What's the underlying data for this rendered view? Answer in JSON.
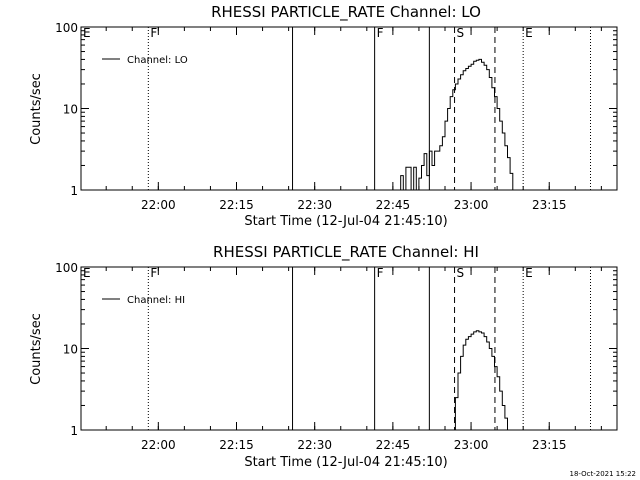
{
  "stamp": "18-Oct-2021 15:22",
  "chart_data": [
    {
      "type": "line",
      "title": "RHESSI PARTICLE_RATE Channel: LO",
      "xlabel": "Start Time (12-Jul-04 21:45:10)",
      "ylabel": "Counts/sec",
      "yscale": "log",
      "ylim": [
        1,
        100
      ],
      "xlim": [
        "21:45:10",
        "23:28:00"
      ],
      "xticks": [
        "22:00",
        "22:15",
        "22:30",
        "22:45",
        "23:00",
        "23:15"
      ],
      "yticks": [
        "1",
        "10",
        "100"
      ],
      "legend": "Channel: LO",
      "legend_position": "top-left",
      "series": [
        {
          "name": "Channel: LO",
          "x": [
            "22:46:00",
            "22:46:30",
            "22:47:00",
            "22:47:30",
            "22:48:00",
            "22:48:30",
            "22:49:00",
            "22:49:30",
            "22:50:00",
            "22:50:30",
            "22:51:00",
            "22:51:30",
            "22:52:00",
            "22:52:30",
            "22:53:00",
            "22:53:30",
            "22:54:00",
            "22:54:30",
            "22:55:00",
            "22:55:30",
            "22:56:00",
            "22:56:30",
            "22:57:00",
            "22:57:30",
            "22:58:00",
            "22:58:30",
            "22:59:00",
            "22:59:30",
            "23:00:00",
            "23:00:30",
            "23:01:00",
            "23:01:30",
            "23:02:00",
            "23:02:30",
            "23:03:00",
            "23:03:30",
            "23:04:00",
            "23:04:30",
            "23:05:00",
            "23:05:30",
            "23:06:00",
            "23:06:30",
            "23:07:00",
            "23:07:30",
            "23:08:00"
          ],
          "values": [
            1,
            1.5,
            1,
            1.9,
            1.9,
            1,
            1.9,
            1,
            1.4,
            2,
            2.8,
            1.5,
            3,
            2,
            3,
            3,
            3.5,
            4.5,
            7,
            10,
            14,
            17,
            20,
            23,
            26,
            29,
            31,
            33,
            35,
            38,
            39,
            40,
            37,
            34,
            30,
            24,
            18,
            14,
            10,
            7,
            5,
            3.5,
            2.5,
            1.6,
            1
          ]
        }
      ],
      "flags": [
        {
          "label": "E",
          "time": "21:45:10",
          "style": "dotted"
        },
        {
          "label": "F",
          "time": "21:58:05",
          "style": "dotted"
        },
        {
          "label": "",
          "time": "22:25:45",
          "style": "solid"
        },
        {
          "label": "F",
          "time": "22:41:30",
          "style": "solid"
        },
        {
          "label": "",
          "time": "22:52:00",
          "style": "solid"
        },
        {
          "label": "S",
          "time": "22:56:50",
          "style": "dashed"
        },
        {
          "label": "",
          "time": "23:04:35",
          "style": "dashed"
        },
        {
          "label": "E",
          "time": "23:10:00",
          "style": "dotted"
        },
        {
          "label": "",
          "time": "23:22:55",
          "style": "dotted"
        }
      ]
    },
    {
      "type": "line",
      "title": "RHESSI PARTICLE_RATE Channel: HI",
      "xlabel": "Start Time (12-Jul-04 21:45:10)",
      "ylabel": "Counts/sec",
      "yscale": "log",
      "ylim": [
        1,
        100
      ],
      "xlim": [
        "21:45:10",
        "23:28:00"
      ],
      "xticks": [
        "22:00",
        "22:15",
        "22:30",
        "22:45",
        "23:00",
        "23:15"
      ],
      "yticks": [
        "1",
        "10",
        "100"
      ],
      "legend": "Channel: HI",
      "legend_position": "top-left",
      "series": [
        {
          "name": "Channel: HI",
          "x": [
            "22:56:40",
            "22:57:00",
            "22:57:30",
            "22:58:00",
            "22:58:30",
            "22:59:00",
            "22:59:30",
            "23:00:00",
            "23:00:30",
            "23:01:00",
            "23:01:30",
            "23:02:00",
            "23:02:30",
            "23:03:00",
            "23:03:30",
            "23:04:00",
            "23:04:30",
            "23:05:00",
            "23:05:30",
            "23:06:00",
            "23:06:30",
            "23:07:00"
          ],
          "values": [
            1,
            2.5,
            5,
            8,
            11,
            13,
            14,
            15,
            16,
            16.5,
            16,
            15.5,
            14,
            12,
            10,
            8,
            6,
            4.5,
            3,
            2,
            1.4,
            1
          ]
        }
      ],
      "flags": [
        {
          "label": "E",
          "time": "21:45:10",
          "style": "dotted"
        },
        {
          "label": "F",
          "time": "21:58:05",
          "style": "dotted"
        },
        {
          "label": "",
          "time": "22:25:45",
          "style": "solid"
        },
        {
          "label": "F",
          "time": "22:41:30",
          "style": "solid"
        },
        {
          "label": "",
          "time": "22:52:00",
          "style": "solid"
        },
        {
          "label": "S",
          "time": "22:56:50",
          "style": "dashed"
        },
        {
          "label": "",
          "time": "23:04:35",
          "style": "dashed"
        },
        {
          "label": "E",
          "time": "23:10:00",
          "style": "dotted"
        },
        {
          "label": "",
          "time": "23:22:55",
          "style": "dotted"
        }
      ]
    }
  ]
}
